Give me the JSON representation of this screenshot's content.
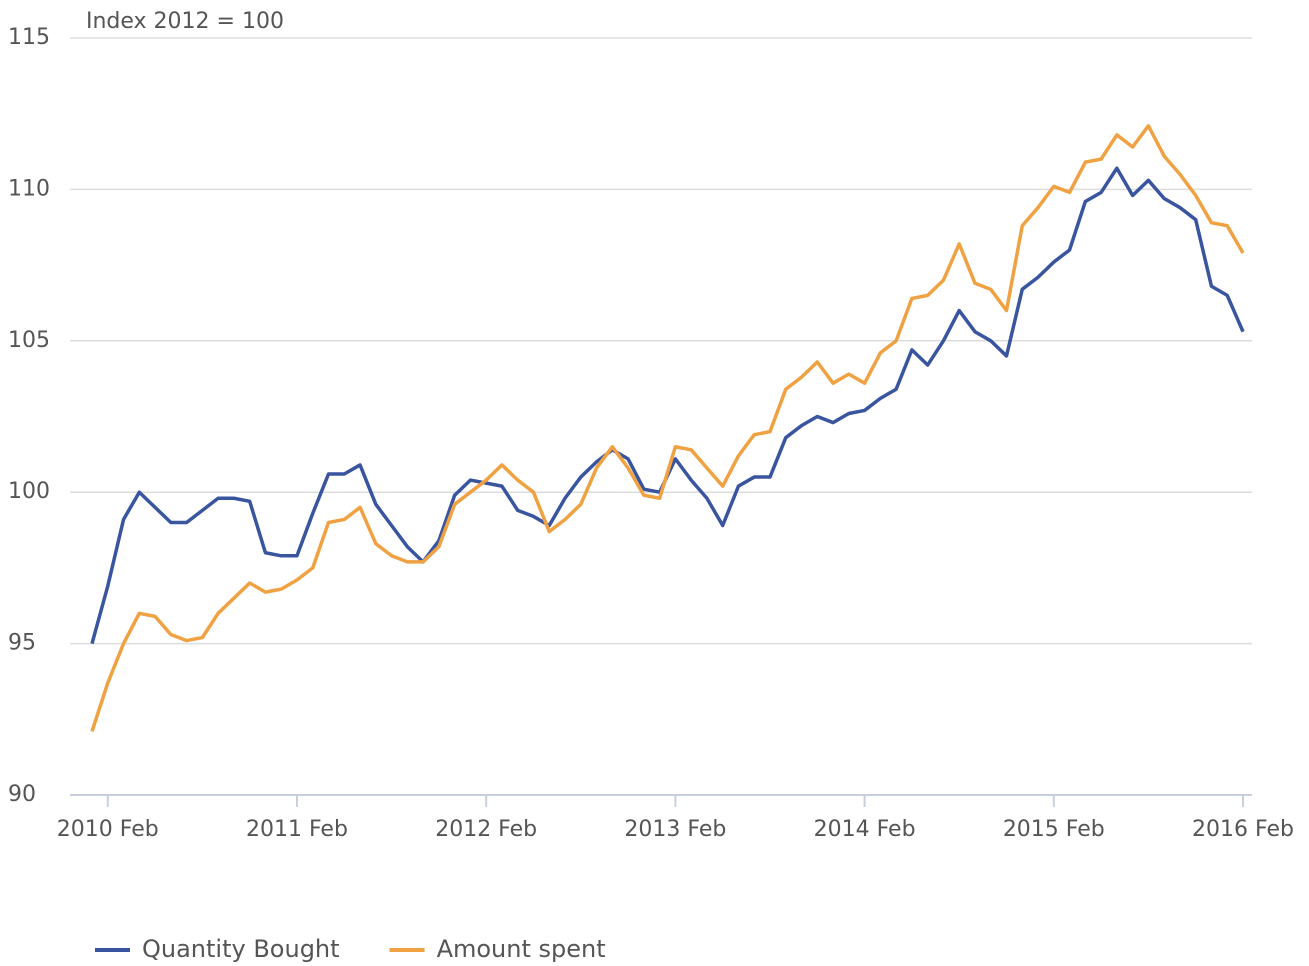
{
  "chart_data": {
    "type": "line",
    "y_label": "Index 2012 = 100",
    "categories": [
      null,
      "2010 Feb",
      null,
      null,
      null,
      null,
      null,
      null,
      null,
      null,
      null,
      null,
      null,
      "2011 Feb",
      null,
      null,
      null,
      null,
      null,
      null,
      null,
      null,
      null,
      null,
      null,
      "2012 Feb",
      null,
      null,
      null,
      null,
      null,
      null,
      null,
      null,
      null,
      null,
      null,
      "2013 Feb",
      null,
      null,
      null,
      null,
      null,
      null,
      null,
      null,
      null,
      null,
      null,
      "2014 Feb",
      null,
      null,
      null,
      null,
      null,
      null,
      null,
      null,
      null,
      null,
      null,
      "2015 Feb",
      null,
      null,
      null,
      null,
      null,
      null,
      null,
      null,
      null,
      null,
      null,
      "2016 Feb"
    ],
    "series": [
      {
        "name": "Quantity Bought",
        "color": "#3a559f",
        "values": [
          95.0,
          96.9,
          99.1,
          100.0,
          99.5,
          99.0,
          99.0,
          99.4,
          99.8,
          99.8,
          99.7,
          98.0,
          97.9,
          97.9,
          99.3,
          100.6,
          100.6,
          100.9,
          99.6,
          98.9,
          98.2,
          97.7,
          98.4,
          99.9,
          100.4,
          100.3,
          100.2,
          99.4,
          99.2,
          98.9,
          99.8,
          100.5,
          101.0,
          101.4,
          101.1,
          100.1,
          100.0,
          101.1,
          100.4,
          99.8,
          98.9,
          100.2,
          100.5,
          100.5,
          101.8,
          102.2,
          102.5,
          102.3,
          102.6,
          102.7,
          103.1,
          103.4,
          104.7,
          104.2,
          105.0,
          106.0,
          105.3,
          105.0,
          104.5,
          106.7,
          107.1,
          107.6,
          108.0,
          109.6,
          109.9,
          110.7,
          109.8,
          110.3,
          109.7,
          109.4,
          109.0,
          106.8,
          106.5,
          105.3
        ]
      },
      {
        "name": "Amount spent",
        "color": "#f0a142",
        "values": [
          92.1,
          93.7,
          95.0,
          96.0,
          95.9,
          95.3,
          95.1,
          95.2,
          96.0,
          96.5,
          97.0,
          96.7,
          96.8,
          97.1,
          97.5,
          99.0,
          99.1,
          99.5,
          98.3,
          97.9,
          97.7,
          97.7,
          98.2,
          99.6,
          100.0,
          100.4,
          100.9,
          100.4,
          100.0,
          98.7,
          99.1,
          99.6,
          100.8,
          101.5,
          100.8,
          99.9,
          99.8,
          101.5,
          101.4,
          100.8,
          100.2,
          101.2,
          101.9,
          102.0,
          103.4,
          103.8,
          104.3,
          103.6,
          103.9,
          103.6,
          104.6,
          105.0,
          106.4,
          106.5,
          107.0,
          108.2,
          106.9,
          106.7,
          106.0,
          108.8,
          109.4,
          110.1,
          109.9,
          110.9,
          111.0,
          111.8,
          111.4,
          112.1,
          111.1,
          110.5,
          109.8,
          108.9,
          108.8,
          107.9
        ]
      }
    ],
    "ylim": [
      90,
      115
    ],
    "yticks": [
      90,
      95,
      100,
      105,
      110,
      115
    ],
    "grid": true,
    "legend": "bottom-left"
  }
}
